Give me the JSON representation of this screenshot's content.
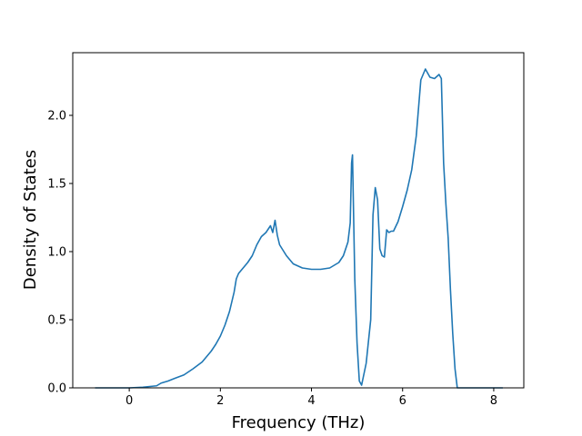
{
  "chart_data": {
    "type": "line",
    "title": "",
    "xlabel": "Frequency (THz)",
    "ylabel": "Density of States",
    "xlim": [
      -1.24,
      8.66
    ],
    "ylim": [
      0.0,
      2.46
    ],
    "grid": false,
    "legend": "none",
    "xticks": [
      0,
      2,
      4,
      6,
      8
    ],
    "xtick_labels": [
      "0",
      "2",
      "4",
      "6",
      "8"
    ],
    "yticks": [
      0.0,
      0.5,
      1.0,
      1.5,
      2.0
    ],
    "ytick_labels": [
      "0.0",
      "0.5",
      "1.0",
      "1.5",
      "2.0"
    ],
    "line_color": "#1f77b4",
    "series": [
      {
        "x": [
          -0.75,
          0.0,
          0.3,
          0.45,
          0.6,
          0.7,
          0.75,
          0.85,
          1.0,
          1.2,
          1.4,
          1.6,
          1.8,
          1.9,
          2.0,
          2.1,
          2.2,
          2.3,
          2.35,
          2.4,
          2.5,
          2.6,
          2.7,
          2.8,
          2.9,
          3.0,
          3.1,
          3.15,
          3.2,
          3.25,
          3.3,
          3.45,
          3.6,
          3.8,
          4.0,
          4.2,
          4.4,
          4.6,
          4.7,
          4.8,
          4.85,
          4.88,
          4.9,
          4.95,
          5.0,
          5.05,
          5.1,
          5.15,
          5.2,
          5.3,
          5.35,
          5.4,
          5.45,
          5.5,
          5.55,
          5.6,
          5.65,
          5.7,
          5.75,
          5.8,
          5.9,
          6.0,
          6.1,
          6.2,
          6.3,
          6.4,
          6.5,
          6.55,
          6.6,
          6.7,
          6.8,
          6.85,
          6.9,
          6.95,
          7.0,
          7.05,
          7.1,
          7.15,
          7.2,
          7.25,
          7.3,
          7.35,
          7.4,
          7.42,
          7.45,
          7.6,
          8.2
        ],
        "y": [
          0.0,
          0.0,
          0.005,
          0.01,
          0.015,
          0.035,
          0.04,
          0.05,
          0.07,
          0.095,
          0.14,
          0.19,
          0.27,
          0.32,
          0.38,
          0.46,
          0.56,
          0.7,
          0.8,
          0.84,
          0.88,
          0.92,
          0.97,
          1.05,
          1.11,
          1.14,
          1.19,
          1.14,
          1.23,
          1.12,
          1.05,
          0.97,
          0.91,
          0.88,
          0.87,
          0.87,
          0.88,
          0.92,
          0.97,
          1.07,
          1.21,
          1.65,
          1.71,
          0.8,
          0.33,
          0.05,
          0.02,
          0.1,
          0.18,
          0.5,
          1.27,
          1.47,
          1.38,
          1.02,
          0.97,
          0.96,
          1.16,
          1.14,
          1.15,
          1.15,
          1.22,
          1.33,
          1.45,
          1.6,
          1.85,
          2.26,
          2.34,
          2.31,
          2.28,
          2.27,
          2.3,
          2.27,
          1.65,
          1.35,
          1.1,
          0.72,
          0.4,
          0.14,
          0.0,
          0.0,
          0.0,
          0.0,
          0.0,
          0.0,
          0.0,
          0.0,
          0.0
        ]
      }
    ]
  }
}
